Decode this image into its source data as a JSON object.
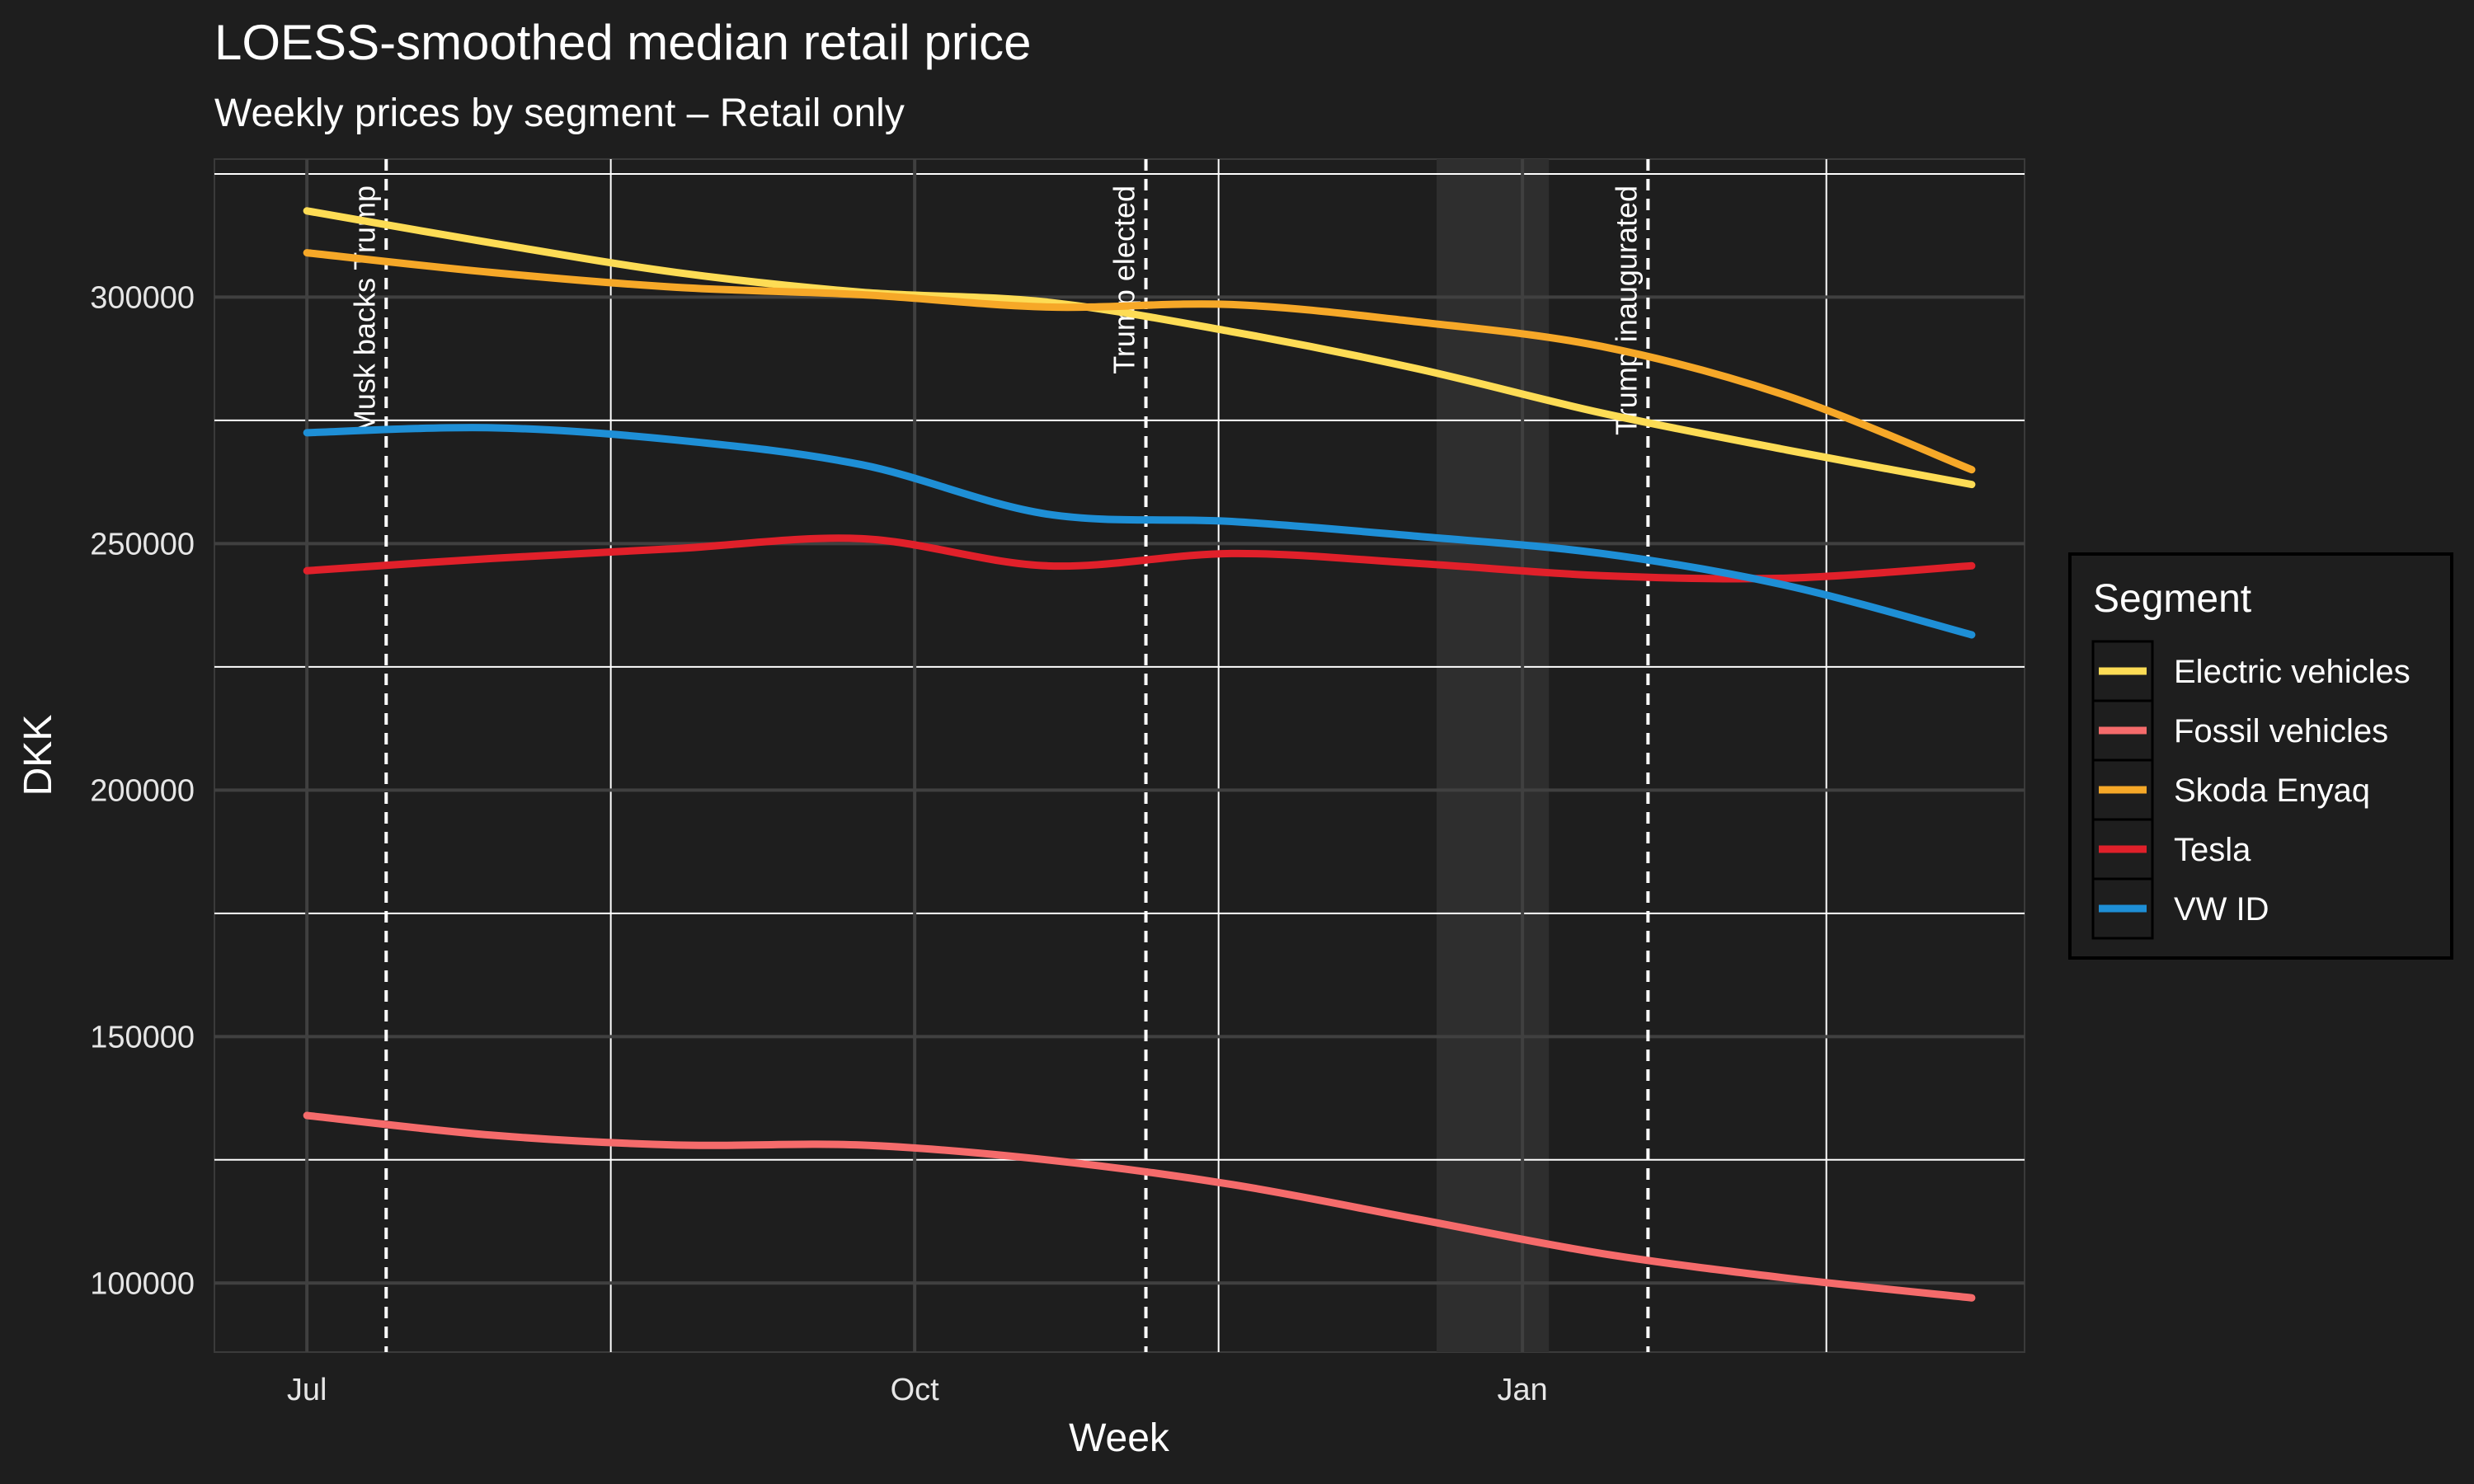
{
  "chart_data": {
    "type": "line",
    "title": "LOESS-smoothed median retail price",
    "subtitle": "Weekly prices by segment – Retail only",
    "xlabel": "Week",
    "ylabel": "DKK",
    "x_ticks": [
      {
        "label": "Jul",
        "date": "2024-07-01"
      },
      {
        "label": "Oct",
        "date": "2024-10-01"
      },
      {
        "label": "Jan",
        "date": "2025-01-01"
      }
    ],
    "xlim": [
      "2024-06-17",
      "2025-03-18"
    ],
    "ylim": [
      86000,
      328000
    ],
    "y_ticks": [
      100000,
      150000,
      200000,
      250000,
      300000
    ],
    "grid": true,
    "legend": {
      "title": "Segment",
      "placement": "right"
    },
    "events": [
      {
        "label": "Musk backs Trump",
        "date": "2024-07-13"
      },
      {
        "label": "Trump elected",
        "date": "2024-11-05"
      },
      {
        "label": "Trump inaugurated",
        "date": "2025-01-20"
      }
    ],
    "shaded_period": {
      "start": "2024-12-19",
      "end": "2025-01-05"
    },
    "x": [
      "2024-07-01",
      "2024-07-29",
      "2024-08-26",
      "2024-09-23",
      "2024-10-21",
      "2024-11-18",
      "2024-12-16",
      "2025-01-13",
      "2025-02-10",
      "2025-03-10"
    ],
    "series": [
      {
        "name": "Electric vehicles",
        "color": "#fddc55",
        "values": [
          317500,
          311000,
          305000,
          301000,
          299000,
          293000,
          285500,
          276500,
          269000,
          262000
        ]
      },
      {
        "name": "Fossil vehicles",
        "color": "#f56b6b",
        "values": [
          134000,
          130000,
          128000,
          128000,
          125000,
          120000,
          113000,
          106000,
          101000,
          97000
        ]
      },
      {
        "name": "Skoda Enyaq",
        "color": "#f6a828",
        "values": [
          309000,
          305000,
          302000,
          300500,
          298000,
          298500,
          295000,
          290000,
          280000,
          265000
        ]
      },
      {
        "name": "Tesla",
        "color": "#e0202a",
        "values": [
          244500,
          247000,
          249000,
          251000,
          245500,
          248000,
          246000,
          243500,
          243000,
          245500
        ]
      },
      {
        "name": "VW ID",
        "color": "#1e8fd6",
        "values": [
          272500,
          273500,
          271000,
          266000,
          256000,
          254500,
          251500,
          248000,
          241500,
          231500
        ]
      }
    ]
  }
}
